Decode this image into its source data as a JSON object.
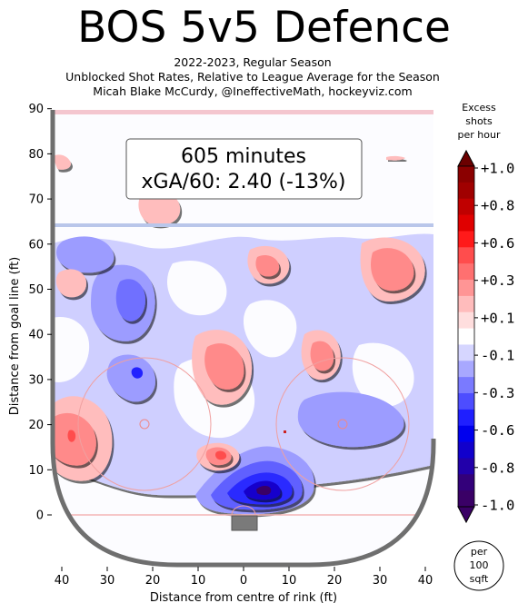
{
  "header": {
    "title": "BOS 5v5 Defence",
    "subtitle_lines": [
      "2022-2023, Regular Season",
      "Unblocked Shot Rates, Relative to League Average for the Season",
      "Micah Blake McCurdy, @IneffectiveMath, hockeyviz.com"
    ]
  },
  "annotation": {
    "minutes": "605 minutes",
    "xga": "xGA/60: 2.40 (-13%)"
  },
  "colorbar": {
    "title_lines": [
      "Excess",
      "shots",
      "per hour"
    ],
    "tick_labels": [
      "+1.0",
      "+0.8",
      "+0.6",
      "+0.3",
      "+0.1",
      "-0.1",
      "-0.3",
      "-0.6",
      "-0.8",
      "-1.0"
    ],
    "tick_values": [
      1.0,
      0.8,
      0.6,
      0.3,
      0.1,
      -0.1,
      -0.3,
      -0.6,
      -0.8,
      -1.0
    ],
    "colors_top_to_bottom": [
      "#8b0000",
      "#a00000",
      "#c00000",
      "#e00000",
      "#ff1a1a",
      "#ff4d4d",
      "#ff7070",
      "#ff9595",
      "#ffbcbc",
      "#ffdede",
      "#ffffff",
      "#d6d6ff",
      "#a8a8ff",
      "#7a7aff",
      "#4d4dff",
      "#1f1fff",
      "#0000ee",
      "#1100cc",
      "#2200aa",
      "#33007a",
      "#3a0066"
    ],
    "unit_note_lines": [
      "per",
      "100",
      "sqft"
    ]
  },
  "chart_data": {
    "type": "heatmap",
    "title": "BOS 5v5 Defence",
    "xlabel": "Distance from centre of rink (ft)",
    "ylabel": "Distance from goal line (ft)",
    "xlim": [
      -42,
      42
    ],
    "ylim": [
      -11,
      90
    ],
    "x_ticks": [
      -40,
      -30,
      -20,
      -10,
      0,
      10,
      20,
      30,
      40
    ],
    "x_tick_labels": [
      "40",
      "30",
      "20",
      "10",
      "0",
      "10",
      "20",
      "30",
      "40"
    ],
    "y_ticks": [
      0,
      10,
      20,
      30,
      40,
      50,
      60,
      70,
      80,
      90
    ],
    "y_tick_labels": [
      "0",
      "10",
      "20",
      "30",
      "40",
      "50",
      "60",
      "70",
      "80",
      "90"
    ],
    "value_range": [
      -1.0,
      1.0
    ],
    "regions": [
      {
        "x": 4,
        "y": 6,
        "value": -1.0
      },
      {
        "x": 4,
        "y": 10,
        "value": -0.6
      },
      {
        "x": -24,
        "y": 44,
        "value": -0.3
      },
      {
        "x": -23,
        "y": 31,
        "value": -0.6
      },
      {
        "x": 30,
        "y": 22,
        "value": -0.3
      },
      {
        "x": -33,
        "y": 53,
        "value": -0.3
      },
      {
        "x": -36,
        "y": 20,
        "value": 0.3
      },
      {
        "x": -10,
        "y": 33,
        "value": 0.3
      },
      {
        "x": 17,
        "y": 35,
        "value": 0.3
      },
      {
        "x": 34,
        "y": 57,
        "value": 0.3
      },
      {
        "x": 4,
        "y": 57,
        "value": 0.3
      },
      {
        "x": -5,
        "y": 13,
        "value": 0.3
      },
      {
        "x": -40,
        "y": 53,
        "value": 0.1
      },
      {
        "x": -19,
        "y": 70,
        "value": 0.1
      },
      {
        "x": -38,
        "y": 79,
        "value": 0.1
      },
      {
        "x": 33,
        "y": 79,
        "value": 0.1
      },
      {
        "x": 12,
        "y": 52,
        "value": 0.1
      }
    ]
  }
}
